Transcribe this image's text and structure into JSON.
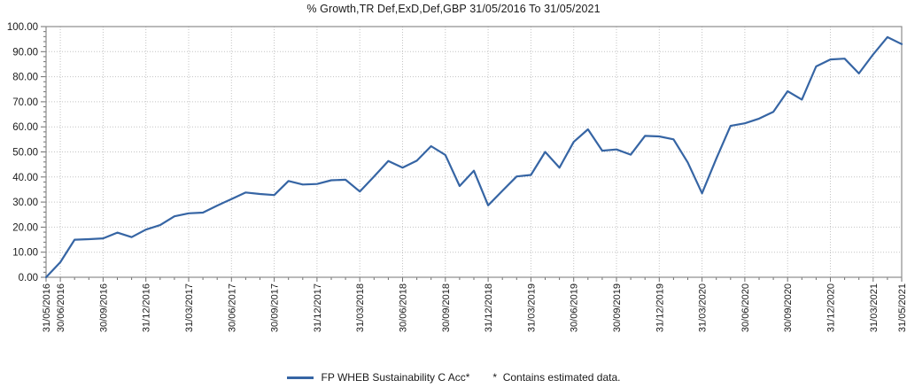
{
  "title": "% Growth,TR Def,ExD,Def,GBP 31/05/2016 To 31/05/2021",
  "legend": {
    "series_label": "FP WHEB Sustainability C Acc*",
    "note": "*  Contains estimated data."
  },
  "colors": {
    "line": "#3665A4",
    "grid": "#c3c3c3",
    "border": "#8c8c8c",
    "tick": "#6e6e6e",
    "text": "#1a1a1a",
    "background": "#ffffff"
  },
  "chart_data": {
    "type": "line",
    "title": "% Growth,TR Def,ExD,Def,GBP 31/05/2016 To 31/05/2021",
    "xlabel": "",
    "ylabel": "",
    "ylim": [
      0,
      100
    ],
    "y_tick_step": 10,
    "y_minor_tick_step": 2,
    "y_tick_decimals": 2,
    "grid": true,
    "legend_position": "bottom",
    "x": [
      "31/05/2016",
      "30/06/2016",
      "31/07/2016",
      "31/08/2016",
      "30/09/2016",
      "31/10/2016",
      "30/11/2016",
      "31/12/2016",
      "31/01/2017",
      "28/02/2017",
      "31/03/2017",
      "30/04/2017",
      "31/05/2017",
      "30/06/2017",
      "31/07/2017",
      "31/08/2017",
      "30/09/2017",
      "31/10/2017",
      "30/11/2017",
      "31/12/2017",
      "31/01/2018",
      "28/02/2018",
      "31/03/2018",
      "30/04/2018",
      "31/05/2018",
      "30/06/2018",
      "31/07/2018",
      "31/08/2018",
      "30/09/2018",
      "31/10/2018",
      "30/11/2018",
      "31/12/2018",
      "31/01/2019",
      "28/02/2019",
      "31/03/2019",
      "30/04/2019",
      "31/05/2019",
      "30/06/2019",
      "31/07/2019",
      "31/08/2019",
      "30/09/2019",
      "31/10/2019",
      "30/11/2019",
      "31/12/2019",
      "31/01/2020",
      "29/02/2020",
      "31/03/2020",
      "30/04/2020",
      "31/05/2020",
      "30/06/2020",
      "31/07/2020",
      "31/08/2020",
      "30/09/2020",
      "31/10/2020",
      "30/11/2020",
      "31/12/2020",
      "31/01/2021",
      "28/02/2021",
      "31/03/2021",
      "30/04/2021",
      "31/05/2021"
    ],
    "x_tick_indices": [
      0,
      1,
      4,
      7,
      10,
      13,
      16,
      19,
      22,
      25,
      28,
      31,
      34,
      37,
      40,
      43,
      46,
      49,
      52,
      55,
      58,
      60
    ],
    "x_tick_labels": [
      "31/05/2016",
      "30/06/2016",
      "30/09/2016",
      "31/12/2016",
      "31/03/2017",
      "30/06/2017",
      "30/09/2017",
      "31/12/2017",
      "31/03/2018",
      "30/06/2018",
      "30/09/2018",
      "31/12/2018",
      "31/03/2019",
      "30/06/2019",
      "30/09/2019",
      "31/12/2019",
      "31/03/2020",
      "30/06/2020",
      "30/09/2020",
      "31/12/2020",
      "31/03/2021",
      "31/05/2021"
    ],
    "series": [
      {
        "name": "FP WHEB Sustainability C Acc*",
        "color": "#3665A4",
        "values": [
          0,
          6,
          15,
          15.2,
          15.5,
          17.8,
          16,
          19,
          20.8,
          24.3,
          25.5,
          25.8,
          28.6,
          31.2,
          33.8,
          33.2,
          32.8,
          38.4,
          37,
          37.2,
          38.7,
          38.9,
          34.2,
          40.2,
          46.4,
          43.7,
          46.5,
          52.3,
          48.8,
          36.4,
          42.5,
          28.7,
          34.5,
          40.2,
          40.8,
          50,
          43.7,
          54,
          59,
          50.5,
          51,
          48.9,
          56.4,
          56.2,
          55,
          45.8,
          33.5,
          47.3,
          60.4,
          61.4,
          63.3,
          66,
          74.2,
          70.9,
          84.1,
          86.9,
          87.2,
          81.3,
          88.9,
          95.8,
          93
        ]
      }
    ],
    "footnote": "*  Contains estimated data."
  }
}
